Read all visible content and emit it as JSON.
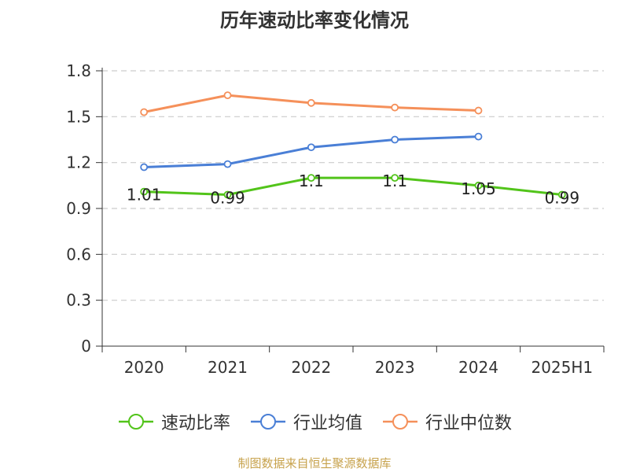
{
  "chart_data": {
    "type": "line",
    "title": "历年速动比率变化情况",
    "categories": [
      "2020",
      "2021",
      "2022",
      "2023",
      "2024",
      "2025H1"
    ],
    "ylim": [
      0,
      1.8
    ],
    "yticks": [
      "0",
      "0.3",
      "0.6",
      "0.9",
      "1.2",
      "1.5",
      "1.8"
    ],
    "grid": true,
    "legend_position": "bottom",
    "series": [
      {
        "name": "速动比率",
        "color": "#52c41a",
        "values": [
          1.01,
          0.99,
          1.1,
          1.1,
          1.05,
          0.99
        ],
        "labels": [
          "1.01",
          "0.99",
          "1.1",
          "1.1",
          "1.05",
          "0.99"
        ]
      },
      {
        "name": "行业均值",
        "color": "#4a7fd6",
        "values": [
          1.17,
          1.19,
          1.3,
          1.35,
          1.37,
          null
        ]
      },
      {
        "name": "行业中位数",
        "color": "#f5905a",
        "values": [
          1.53,
          1.64,
          1.59,
          1.56,
          1.54,
          null
        ]
      }
    ]
  },
  "source_note": "制图数据来自恒生聚源数据库"
}
